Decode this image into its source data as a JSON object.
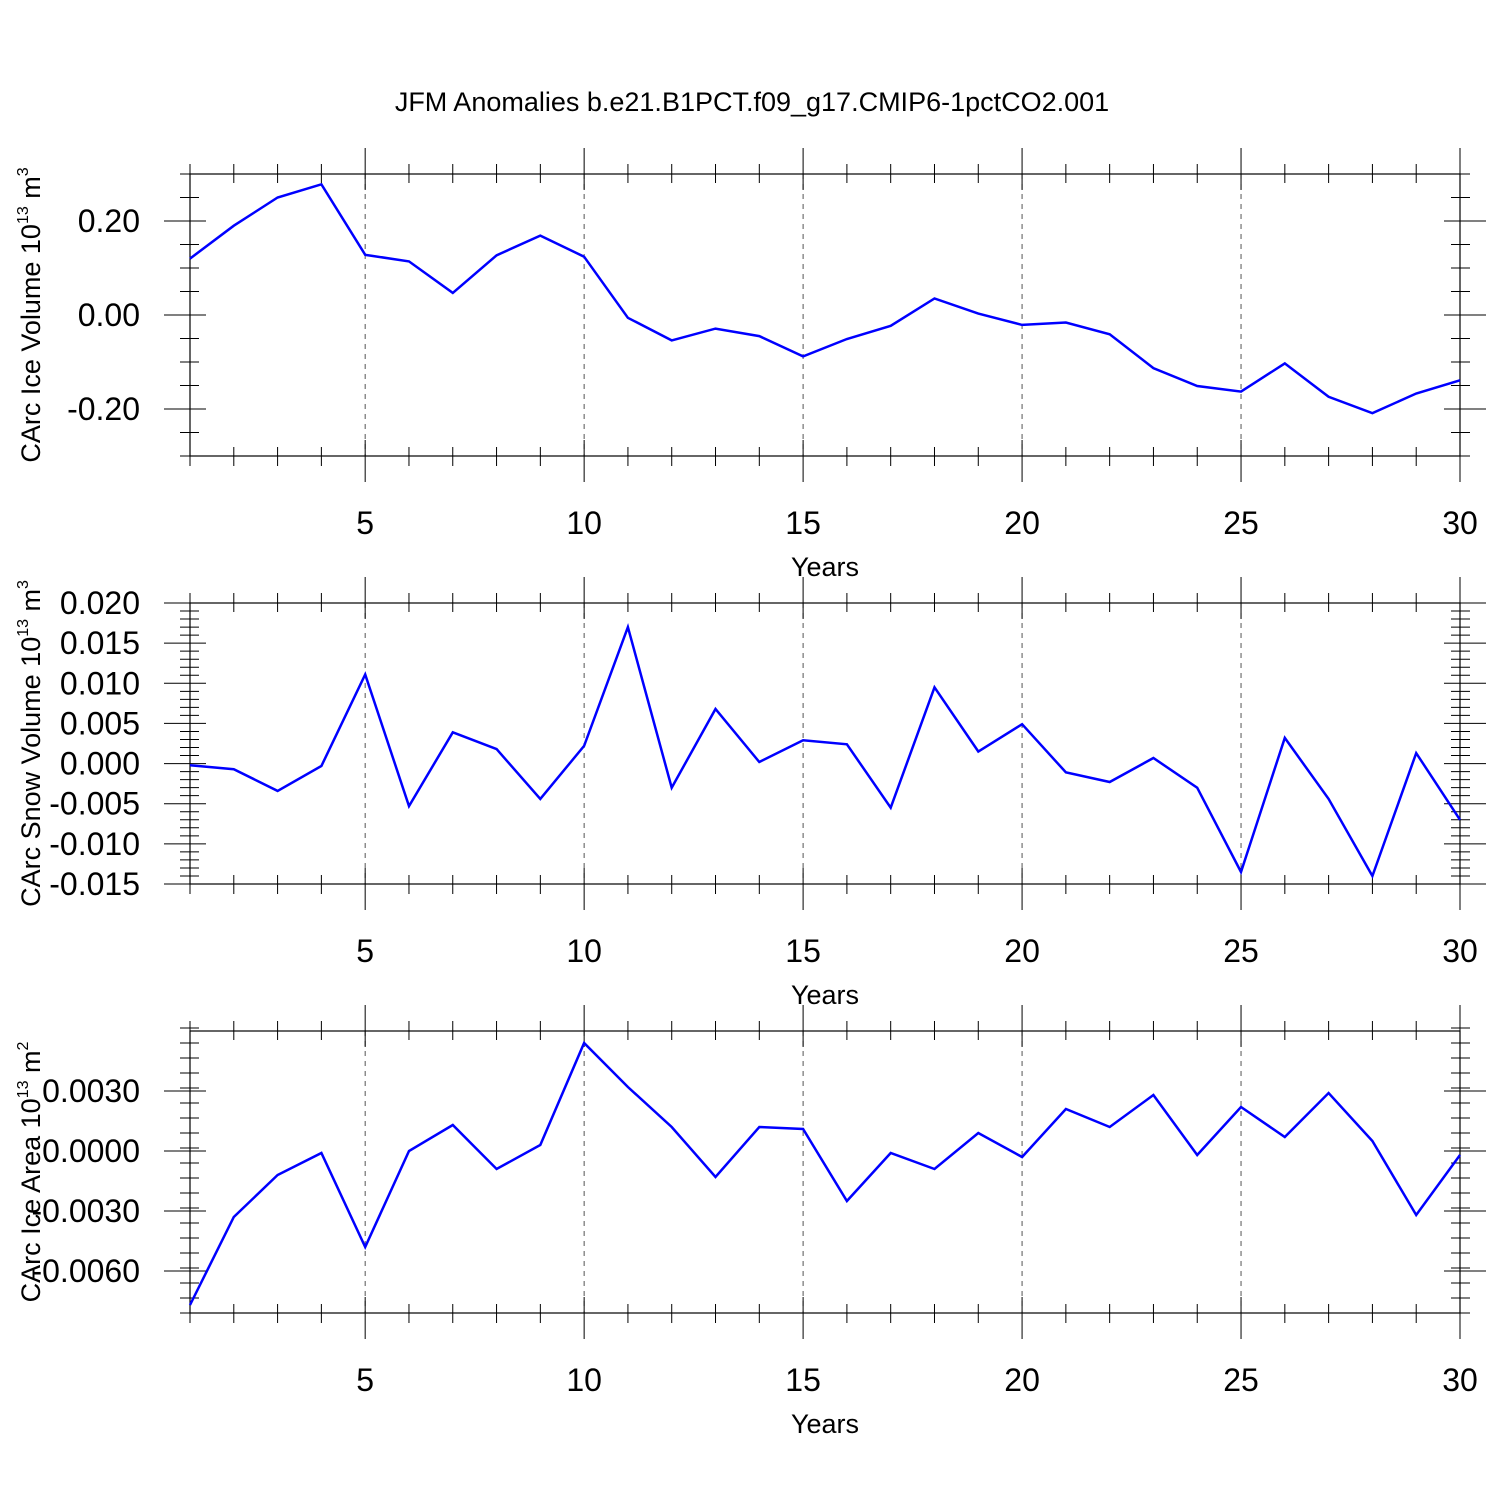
{
  "title": "JFM Anomalies b.e21.B1PCT.f09_g17.CMIP6-1pctCO2.001",
  "colors": {
    "series": "#0000ff",
    "axes": "#000000",
    "grid": "#555555"
  },
  "chart_data": [
    {
      "type": "line",
      "ylabel": "CArc Ice Volume 10",
      "ylabel_exp": "13",
      "ylabel_unit": " m",
      "ylabel_unit_exp": "3",
      "xlabel": "Years",
      "xlim": [
        1,
        30
      ],
      "ylim": [
        -0.3,
        0.3
      ],
      "x_ticks": [
        5,
        10,
        15,
        20,
        25,
        30
      ],
      "x_tick_labels": [
        "5",
        "10",
        "15",
        "20",
        "25",
        "30"
      ],
      "x_minor_step": 1,
      "y_ticks": [
        0.2,
        0.0,
        -0.2
      ],
      "y_tick_labels": [
        "0.20",
        "0.00",
        "-0.20"
      ],
      "y_minor_step": 0.05,
      "grid": "vertical dashed at major x ticks",
      "series": [
        {
          "x": [
            1,
            2,
            3,
            4,
            5,
            6,
            7,
            8,
            9,
            10,
            11,
            12,
            13,
            14,
            15,
            16,
            17,
            18,
            19,
            20,
            21,
            22,
            23,
            24,
            25,
            26,
            27,
            28,
            29,
            30
          ],
          "values": [
            0.12,
            0.19,
            0.25,
            0.278,
            0.128,
            0.114,
            0.047,
            0.127,
            0.169,
            0.124,
            -0.006,
            -0.054,
            -0.029,
            -0.045,
            -0.088,
            -0.051,
            -0.023,
            0.035,
            0.003,
            -0.021,
            -0.016,
            -0.041,
            -0.113,
            -0.151,
            -0.163,
            -0.103,
            -0.174,
            -0.209,
            -0.167,
            -0.139
          ]
        }
      ]
    },
    {
      "type": "line",
      "ylabel": "CArc Snow Volume 10",
      "ylabel_exp": "13",
      "ylabel_unit": " m",
      "ylabel_unit_exp": "3",
      "xlabel": "Years",
      "xlim": [
        1,
        30
      ],
      "ylim": [
        -0.015,
        0.02
      ],
      "x_ticks": [
        5,
        10,
        15,
        20,
        25,
        30
      ],
      "x_tick_labels": [
        "5",
        "10",
        "15",
        "20",
        "25",
        "30"
      ],
      "x_minor_step": 1,
      "y_ticks": [
        0.02,
        0.015,
        0.01,
        0.005,
        0.0,
        -0.005,
        -0.01,
        -0.015
      ],
      "y_tick_labels": [
        "0.020",
        "0.015",
        "0.010",
        "0.005",
        "0.000",
        "-0.005",
        "-0.010",
        "-0.015"
      ],
      "y_minor_step": 0.001,
      "grid": "vertical dashed at major x ticks",
      "series": [
        {
          "x": [
            1,
            2,
            3,
            4,
            5,
            6,
            7,
            8,
            9,
            10,
            11,
            12,
            13,
            14,
            15,
            16,
            17,
            18,
            19,
            20,
            21,
            22,
            23,
            24,
            25,
            26,
            27,
            28,
            29,
            30
          ],
          "values": [
            -0.0002,
            -0.0007,
            -0.0034,
            -0.0003,
            0.0111,
            -0.0053,
            0.0039,
            0.0018,
            -0.0044,
            0.0022,
            0.017,
            -0.003,
            0.0068,
            0.0002,
            0.0029,
            0.0024,
            -0.0055,
            0.0095,
            0.0015,
            0.0049,
            -0.0011,
            -0.0023,
            0.0007,
            -0.003,
            -0.0135,
            0.0032,
            -0.0044,
            -0.014,
            0.0013,
            -0.007
          ]
        }
      ]
    },
    {
      "type": "line",
      "ylabel": "CArc Ice Area 10",
      "ylabel_exp": "13",
      "ylabel_unit": " m",
      "ylabel_unit_exp": "2",
      "xlabel": "Years",
      "xlim": [
        1,
        30
      ],
      "ylim": [
        -0.0081,
        0.006
      ],
      "x_ticks": [
        5,
        10,
        15,
        20,
        25,
        30
      ],
      "x_tick_labels": [
        "5",
        "10",
        "15",
        "20",
        "25",
        "30"
      ],
      "x_minor_step": 1,
      "y_ticks": [
        0.003,
        0.0,
        -0.003,
        -0.006
      ],
      "y_tick_labels": [
        "0.0030",
        "0.0000",
        "-0.0030",
        "-0.0060"
      ],
      "y_minor_step": 0.00075,
      "grid": "vertical dashed at major x ticks",
      "series": [
        {
          "x": [
            1,
            2,
            3,
            4,
            5,
            6,
            7,
            8,
            9,
            10,
            11,
            12,
            13,
            14,
            15,
            16,
            17,
            18,
            19,
            20,
            21,
            22,
            23,
            24,
            25,
            26,
            27,
            28,
            29,
            30
          ],
          "values": [
            -0.0077,
            -0.0033,
            -0.0012,
            -0.0001,
            -0.0048,
            0.0,
            0.0013,
            -0.0009,
            0.0003,
            0.0054,
            0.0032,
            0.0012,
            -0.0013,
            0.0012,
            0.0011,
            -0.0025,
            -0.0001,
            -0.0009,
            0.0009,
            -0.0003,
            0.0021,
            0.0012,
            0.0028,
            -0.0002,
            0.0022,
            0.0007,
            0.0029,
            0.0005,
            -0.0032,
            -0.0002
          ]
        }
      ]
    }
  ]
}
